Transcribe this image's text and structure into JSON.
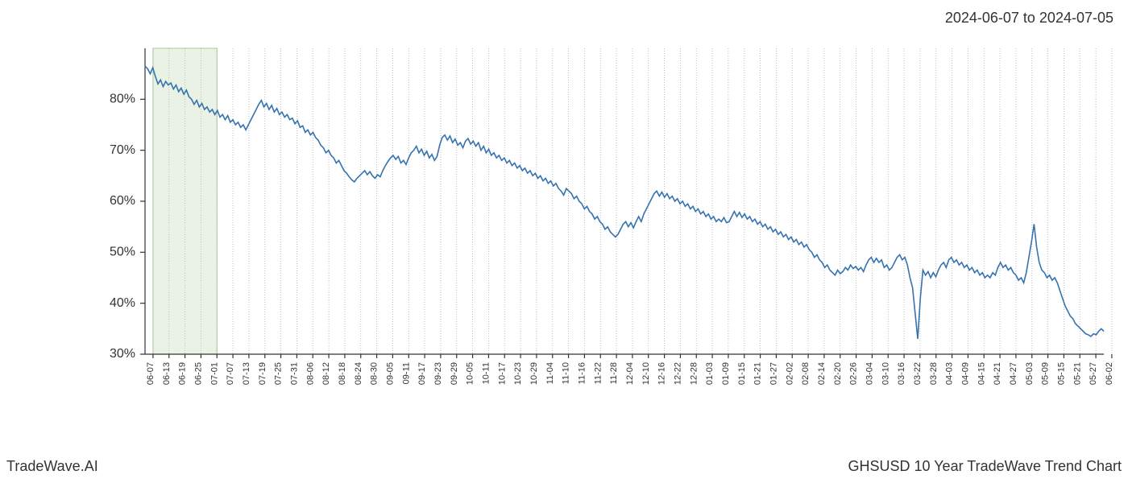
{
  "header": {
    "date_range": "2024-06-07 to 2024-07-05"
  },
  "footer": {
    "left": "TradeWave.AI",
    "right": "GHSUSD 10 Year TradeWave Trend Chart"
  },
  "chart": {
    "type": "line",
    "background_color": "#ffffff",
    "grid_color": "#b0b0b0",
    "axis_color": "#333333",
    "line_color": "#3573b0",
    "highlight_fill": "#d8e8cf",
    "highlight_stroke": "#a8c98f",
    "highlight_opacity": 0.55,
    "line_width": 1.6,
    "label_fontsize": 16,
    "xlabel_fontsize": 11,
    "ylim": [
      30,
      90
    ],
    "ytick_step": 10,
    "yticks": [
      30,
      40,
      50,
      60,
      70,
      80
    ],
    "ytick_labels": [
      "30%",
      "40%",
      "50%",
      "60%",
      "70%",
      "80%"
    ],
    "xticks": [
      "06-07",
      "06-13",
      "06-19",
      "06-25",
      "07-01",
      "07-07",
      "07-13",
      "07-19",
      "07-25",
      "07-31",
      "08-06",
      "08-12",
      "08-18",
      "08-24",
      "08-30",
      "09-05",
      "09-11",
      "09-17",
      "09-23",
      "09-29",
      "10-05",
      "10-11",
      "10-17",
      "10-23",
      "10-29",
      "11-04",
      "11-10",
      "11-16",
      "11-22",
      "11-28",
      "12-04",
      "12-10",
      "12-16",
      "12-22",
      "12-28",
      "01-03",
      "01-09",
      "01-15",
      "01-21",
      "01-27",
      "02-02",
      "02-08",
      "02-14",
      "02-20",
      "02-26",
      "03-04",
      "03-10",
      "03-16",
      "03-22",
      "03-28",
      "04-03",
      "04-09",
      "04-15",
      "04-21",
      "04-27",
      "05-03",
      "05-09",
      "05-15",
      "05-21",
      "05-27",
      "06-02"
    ],
    "highlight_range": {
      "start_index": 0,
      "end_index": 4
    },
    "series": [
      86.5,
      86.0,
      85.0,
      86.2,
      84.5,
      83.0,
      83.8,
      82.5,
      83.5,
      82.8,
      83.2,
      82.0,
      82.8,
      81.5,
      82.2,
      81.0,
      81.8,
      80.5,
      80.0,
      79.0,
      79.8,
      78.5,
      79.2,
      78.0,
      78.5,
      77.5,
      78.0,
      77.0,
      77.8,
      76.5,
      77.0,
      76.0,
      76.8,
      75.5,
      76.0,
      75.0,
      75.5,
      74.5,
      75.0,
      74.0,
      75.0,
      76.0,
      77.0,
      78.0,
      79.0,
      79.8,
      78.5,
      79.2,
      78.0,
      78.8,
      77.5,
      78.2,
      77.0,
      77.5,
      76.5,
      77.0,
      76.0,
      76.3,
      75.2,
      75.8,
      74.5,
      74.8,
      73.5,
      74.0,
      73.0,
      73.5,
      72.5,
      72.0,
      71.0,
      70.5,
      69.5,
      70.0,
      69.0,
      68.5,
      67.5,
      68.0,
      67.0,
      66.0,
      65.5,
      64.8,
      64.2,
      63.8,
      64.5,
      65.0,
      65.5,
      66.0,
      65.2,
      65.8,
      65.0,
      64.5,
      65.2,
      64.8,
      66.0,
      67.0,
      67.8,
      68.5,
      69.0,
      68.2,
      68.8,
      67.5,
      68.0,
      67.2,
      68.5,
      69.5,
      70.0,
      70.8,
      69.5,
      70.2,
      69.0,
      69.8,
      68.5,
      69.2,
      68.0,
      68.8,
      71.0,
      72.5,
      73.0,
      72.0,
      72.8,
      71.5,
      72.2,
      71.0,
      71.5,
      70.5,
      71.8,
      72.3,
      71.2,
      71.8,
      70.8,
      71.5,
      70.0,
      70.8,
      69.5,
      70.2,
      69.0,
      69.5,
      68.5,
      69.0,
      68.0,
      68.5,
      67.5,
      68.0,
      67.0,
      67.5,
      66.5,
      67.0,
      66.0,
      66.5,
      65.5,
      66.0,
      65.0,
      65.5,
      64.5,
      65.0,
      64.0,
      64.5,
      63.5,
      64.0,
      63.0,
      63.5,
      62.5,
      62.0,
      61.2,
      62.5,
      62.0,
      61.5,
      60.5,
      61.0,
      60.0,
      59.5,
      58.5,
      59.0,
      58.0,
      57.5,
      56.5,
      57.0,
      56.0,
      55.5,
      54.5,
      55.0,
      54.0,
      53.5,
      53.0,
      53.5,
      54.5,
      55.5,
      56.0,
      55.0,
      55.8,
      54.8,
      56.0,
      57.0,
      56.0,
      57.5,
      58.5,
      59.5,
      60.5,
      61.5,
      62.0,
      61.0,
      61.8,
      60.8,
      61.5,
      60.5,
      61.0,
      60.0,
      60.5,
      59.5,
      60.0,
      59.0,
      59.5,
      58.5,
      59.0,
      58.0,
      58.5,
      57.5,
      58.0,
      57.0,
      57.5,
      56.5,
      57.0,
      56.0,
      56.5,
      56.0,
      56.8,
      55.8,
      56.0,
      57.0,
      58.0,
      57.0,
      57.8,
      56.8,
      57.5,
      56.5,
      57.0,
      56.0,
      56.5,
      55.5,
      56.0,
      55.0,
      55.5,
      54.5,
      55.0,
      54.0,
      54.5,
      53.5,
      54.0,
      53.0,
      53.5,
      52.5,
      53.0,
      52.0,
      52.5,
      51.5,
      52.0,
      51.0,
      51.5,
      50.5,
      50.0,
      49.0,
      49.5,
      48.5,
      48.0,
      47.0,
      47.5,
      46.5,
      46.0,
      45.5,
      46.5,
      45.8,
      46.2,
      47.0,
      46.5,
      47.5,
      46.8,
      47.2,
      46.5,
      47.0,
      46.2,
      47.5,
      48.5,
      49.0,
      48.0,
      48.8,
      48.0,
      48.5,
      47.0,
      47.5,
      46.5,
      47.0,
      48.0,
      49.0,
      49.5,
      48.5,
      49.0,
      47.5,
      45.0,
      43.0,
      38.0,
      33.0,
      41.0,
      46.5,
      45.5,
      46.2,
      45.0,
      46.0,
      45.2,
      46.5,
      47.5,
      48.0,
      47.0,
      48.5,
      49.0,
      48.0,
      48.5,
      47.5,
      48.0,
      47.0,
      47.5,
      46.5,
      47.0,
      46.0,
      46.5,
      45.5,
      46.0,
      45.0,
      45.5,
      45.0,
      46.0,
      45.5,
      47.0,
      48.0,
      47.0,
      47.5,
      46.5,
      47.0,
      46.0,
      45.5,
      44.5,
      45.0,
      44.0,
      46.0,
      49.0,
      52.0,
      55.5,
      51.0,
      48.0,
      46.5,
      46.0,
      45.0,
      45.5,
      44.5,
      45.0,
      44.0,
      42.5,
      41.0,
      39.5,
      38.5,
      37.5,
      37.0,
      36.0,
      35.5,
      35.0,
      34.5,
      34.0,
      33.8,
      33.5,
      34.0,
      33.8,
      34.5,
      35.0,
      34.5
    ]
  }
}
